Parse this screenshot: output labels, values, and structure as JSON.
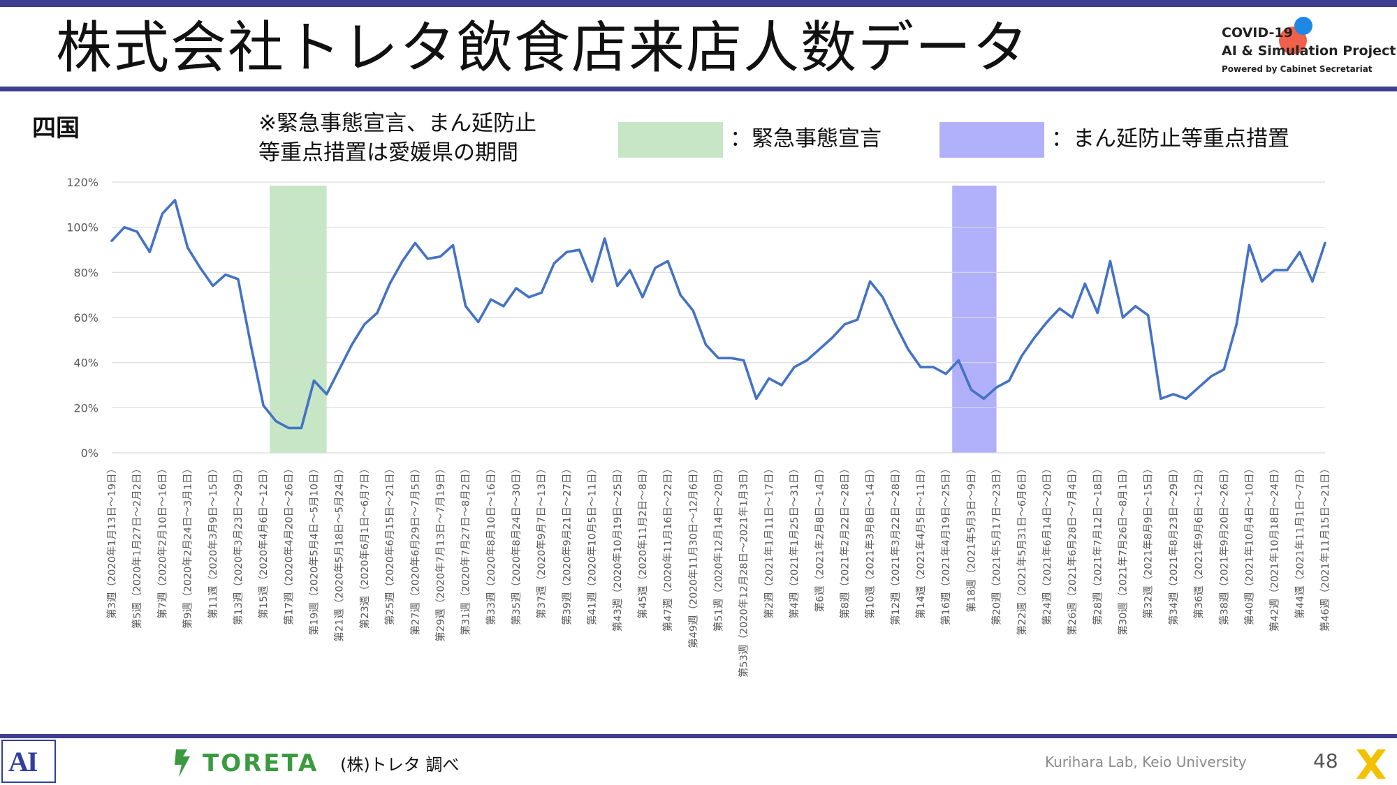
{
  "header": {
    "title": "株式会社トレタ飲食店来店人数データ",
    "logo_line1": "COVID-19",
    "logo_line2": "AI & Simulation Project",
    "logo_line3": "Powered by Cabinet Secretariat"
  },
  "region_label": "四国",
  "note": "※緊急事態宣言、まん延防止\n等重点措置は愛媛県の期間",
  "legend": {
    "emergency_label": "：緊急事態宣言",
    "emergency_color": "#c6e6c6",
    "priority_label": "：まん延防止等重点措置",
    "priority_color": "#b1b0fa"
  },
  "footer": {
    "source": "(株)トレタ 調べ",
    "toreta_logo": "TORETA",
    "lab": "Kurihara Lab, Keio University",
    "page": "48",
    "ai_logo": "AI"
  },
  "chart_data": {
    "type": "line",
    "line_color": "#4472c4",
    "y_ticks": [
      "0%",
      "20%",
      "40%",
      "60%",
      "80%",
      "100%",
      "120%"
    ],
    "ylim": [
      0,
      120
    ],
    "grid": true,
    "x_tick_labels": [
      "第3週（2020年1月13日～19日）",
      "第5週（2020年1月27日～2月2日）",
      "第7週（2020年2月10日～16日）",
      "第9週（2020年2月24日～3月1日）",
      "第11週（2020年3月9日～15日）",
      "第13週（2020年3月23日～29日）",
      "第15週（2020年4月6日～12日）",
      "第17週（2020年4月20日～26日）",
      "第19週（2020年5月4日～5月10日）",
      "第21週（2020年5月18日～5月24日）",
      "第23週（2020年6月1日～6月7日）",
      "第25週（2020年6月15日～21日）",
      "第27週（2020年6月29日～7月5日）",
      "第29週（2020年7月13日～7月19日）",
      "第31週（2020年7月27日～8月2日）",
      "第33週（2020年8月10日～16日）",
      "第35週（2020年8月24日～30日）",
      "第37週（2020年9月7日～13日）",
      "第39週（2020年9月21日～27日）",
      "第41週（2020年10月5日～11日）",
      "第43週（2020年10月19日～25日）",
      "第45週（2020年11月2日～8日）",
      "第47週（2020年11月16日～22日）",
      "第49週（2020年11月30日～12月6日）",
      "第51週（2020年12月14日～20日）",
      "第53週（2020年12月28日～2021年1月3日）",
      "第2週（2021年1月11日～17日）",
      "第4週（2021年1月25日～31日）",
      "第6週（2021年2月8日～14日）",
      "第8週（2021年2月22日～28日）",
      "第10週（2021年3月8日～14日）",
      "第12週（2021年3月22日～28日）",
      "第14週（2021年4月5日～11日）",
      "第16週（2021年4月19日～25日）",
      "第18週（2021年5月3日～9日）",
      "第20週（2021年5月17日～23日）",
      "第22週（2021年5月31日～6月6日）",
      "第24週（2021年6月14日～20日）",
      "第26週（2021年6月28日～7月4日）",
      "第28週（2021年7月12日～18日）",
      "第30週（2021年7月26日～8月1日）",
      "第32週（2021年8月9日～15日）",
      "第34週（2021年8月23日～29日）",
      "第36週（2021年9月6日～12日）",
      "第38週（2021年9月20日～26日）",
      "第40週（2021年10月4日～10日）",
      "第42週（2021年10月18日～24日）",
      "第44週（2021年11月1日～7日）",
      "第46週（2021年11月15日～21日）"
    ],
    "values": [
      94,
      100,
      98,
      89,
      106,
      112,
      91,
      82,
      74,
      79,
      77,
      48,
      21,
      14,
      11,
      11,
      32,
      26,
      37,
      48,
      57,
      62,
      75,
      85,
      93,
      86,
      87,
      92,
      65,
      58,
      68,
      65,
      73,
      69,
      71,
      84,
      89,
      90,
      76,
      95,
      74,
      81,
      69,
      82,
      85,
      70,
      63,
      48,
      42,
      42,
      41,
      24,
      33,
      30,
      38,
      41,
      46,
      51,
      57,
      59,
      76,
      69,
      57,
      46,
      38,
      38,
      35,
      41,
      28,
      24,
      29,
      32,
      43,
      51,
      58,
      64,
      60,
      75,
      62,
      85,
      60,
      65,
      61,
      24,
      26,
      24,
      29,
      34,
      37,
      57,
      92,
      76,
      81,
      81,
      89,
      76,
      93
    ],
    "shaded_periods": [
      {
        "label": "緊急事態宣言",
        "from_index": 12.5,
        "to_index": 17.0,
        "color": "#c6e6c6"
      },
      {
        "label": "まん延防止等重点措置",
        "from_index": 66.5,
        "to_index": 70.0,
        "color": "#b1b0fa"
      }
    ]
  }
}
